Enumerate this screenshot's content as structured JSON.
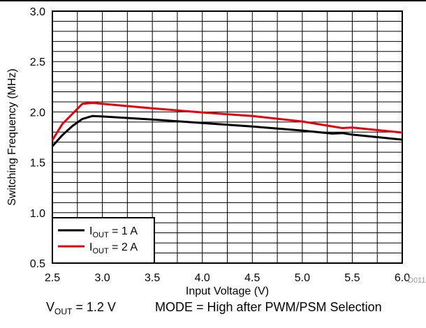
{
  "chart_data": {
    "type": "line",
    "xlabel": "Input Voltage (V)",
    "ylabel": "Switching Frequency (MHz)",
    "xlim": [
      2.5,
      6.0
    ],
    "ylim": [
      0.5,
      3.0
    ],
    "x_ticks": [
      "2.5",
      "3.0",
      "3.5",
      "4.0",
      "4.5",
      "5.0",
      "5.5",
      "6.0"
    ],
    "y_ticks": [
      "0.5",
      "1.0",
      "1.5",
      "2.0",
      "2.5",
      "3.0"
    ],
    "grid": true,
    "legend_position": "bottom-left",
    "series": [
      {
        "name_main": "I",
        "name_sub": "OUT",
        "name_rest": " = 1 A",
        "color": "#000000",
        "x": [
          2.5,
          2.6,
          2.7,
          2.8,
          2.9,
          3.0,
          3.5,
          4.0,
          4.5,
          5.0,
          5.3,
          5.4,
          5.5,
          6.0
        ],
        "y": [
          1.66,
          1.77,
          1.86,
          1.93,
          1.96,
          1.955,
          1.925,
          1.89,
          1.855,
          1.815,
          1.785,
          1.79,
          1.775,
          1.725
        ]
      },
      {
        "name_main": "I",
        "name_sub": "OUT",
        "name_rest": " = 2 A",
        "color": "#e8000b",
        "x": [
          2.5,
          2.6,
          2.7,
          2.8,
          2.9,
          3.0,
          3.5,
          4.0,
          4.5,
          5.0,
          5.4,
          5.5,
          6.0
        ],
        "y": [
          1.72,
          1.88,
          1.98,
          2.08,
          2.09,
          2.08,
          2.035,
          1.995,
          1.96,
          1.905,
          1.84,
          1.845,
          1.795
        ]
      }
    ]
  },
  "captions": {
    "vout_main": "V",
    "vout_sub": "OUT",
    "vout_rest": " = 1.2 V",
    "mode": "MODE = High after PWM/PSM Selection",
    "figure_id": "D011"
  }
}
